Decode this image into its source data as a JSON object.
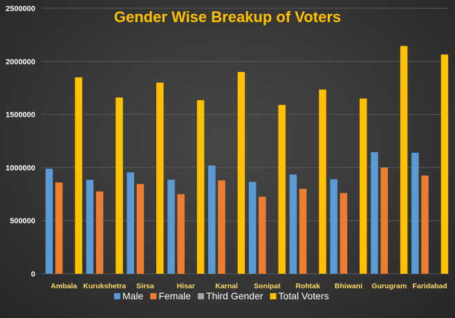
{
  "chart_data": {
    "type": "bar",
    "title": "Gender Wise Breakup of Voters",
    "xlabel": "",
    "ylabel": "",
    "categories": [
      "Ambala",
      "Kurukshetra",
      "Sirsa",
      "Hisar",
      "Karnal",
      "Sonipat",
      "Rohtak",
      "Bhiwani",
      "Gurugram",
      "Faridabad"
    ],
    "series": [
      {
        "name": "Male",
        "color": "#5b9bd5",
        "values": [
          990000,
          885000,
          955000,
          885000,
          1020000,
          865000,
          935000,
          890000,
          1145000,
          1140000
        ]
      },
      {
        "name": "Female",
        "color": "#ed7d31",
        "values": [
          860000,
          775000,
          845000,
          750000,
          880000,
          725000,
          800000,
          760000,
          1000000,
          925000
        ]
      },
      {
        "name": "Third Gender",
        "color": "#a5a5a5",
        "values": [
          0,
          0,
          0,
          0,
          0,
          0,
          0,
          0,
          0,
          0
        ]
      },
      {
        "name": "Total Voters",
        "color": "#ffc000",
        "values": [
          1850000,
          1660000,
          1800000,
          1635000,
          1900000,
          1590000,
          1735000,
          1650000,
          2145000,
          2065000
        ]
      }
    ],
    "ylim": [
      0,
      2500000
    ],
    "yticks": [
      "0",
      "500000",
      "1000000",
      "1500000",
      "2000000",
      "2500000"
    ],
    "grid": true,
    "legend": "bottom",
    "colors": {
      "title": "#ffc000",
      "category_labels": "#ffd966",
      "tick_labels": "#ffffff",
      "legend_text": "#ffffff",
      "grid": "#5a5a5a"
    }
  }
}
